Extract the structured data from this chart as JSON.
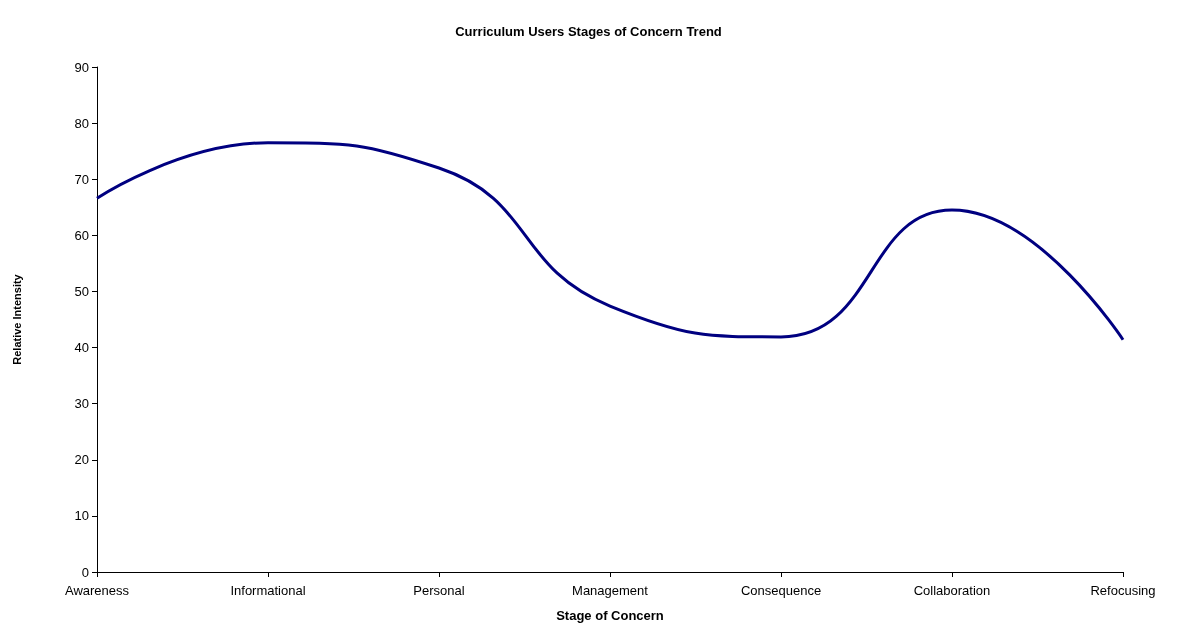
{
  "chart_data": {
    "type": "line",
    "title": "Curriculum Users Stages of Concern Trend",
    "xlabel": "Stage of Concern",
    "ylabel": "Relative Intensity",
    "categories": [
      "Awareness",
      "Informational",
      "Personal",
      "Management",
      "Consequence",
      "Collaboration",
      "Refocusing"
    ],
    "series": [
      {
        "color": "#000080",
        "values": [
          66.6,
          76.5,
          72,
          47.4,
          41.9,
          64.5,
          41.4
        ]
      }
    ],
    "ylim": [
      0,
      90
    ],
    "yticks": [
      0,
      10,
      20,
      30,
      40,
      50,
      60,
      70,
      80,
      90
    ],
    "grid": false,
    "marker": "none",
    "line_style": "solid"
  }
}
